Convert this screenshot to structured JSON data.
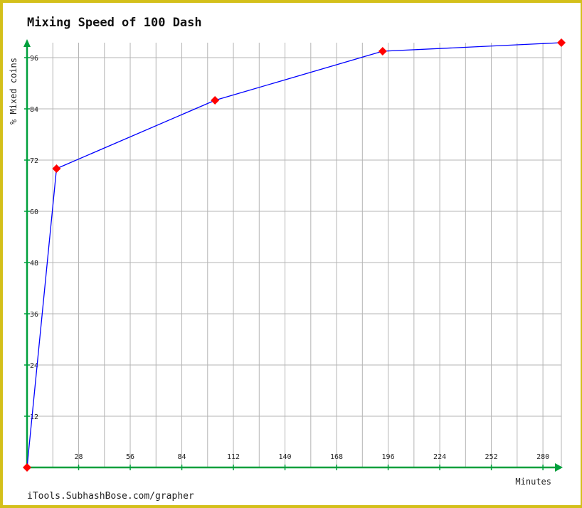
{
  "chart_data": {
    "type": "line",
    "title": "Mixing Speed of 100 Dash",
    "xlabel": "Minutes",
    "ylabel": "% Mixed coins",
    "xlim": [
      0,
      290
    ],
    "ylim": [
      0,
      100
    ],
    "x_ticks": [
      28,
      56,
      84,
      112,
      140,
      168,
      196,
      224,
      252,
      280
    ],
    "y_ticks": [
      12,
      24,
      36,
      48,
      60,
      72,
      84,
      96
    ],
    "grid": true,
    "legend": "none",
    "series": [
      {
        "x": [
          0,
          16,
          102,
          193,
          290
        ],
        "y": [
          0,
          70,
          86,
          97.5,
          99.5
        ],
        "line_color": "#0000ff",
        "marker_color": "#ff0000"
      }
    ]
  },
  "footer": "iTools.SubhashBose.com/grapher",
  "colors": {
    "axis": "#00a03c",
    "grid": "#b4b4b4",
    "frame": "#d4c01a"
  }
}
